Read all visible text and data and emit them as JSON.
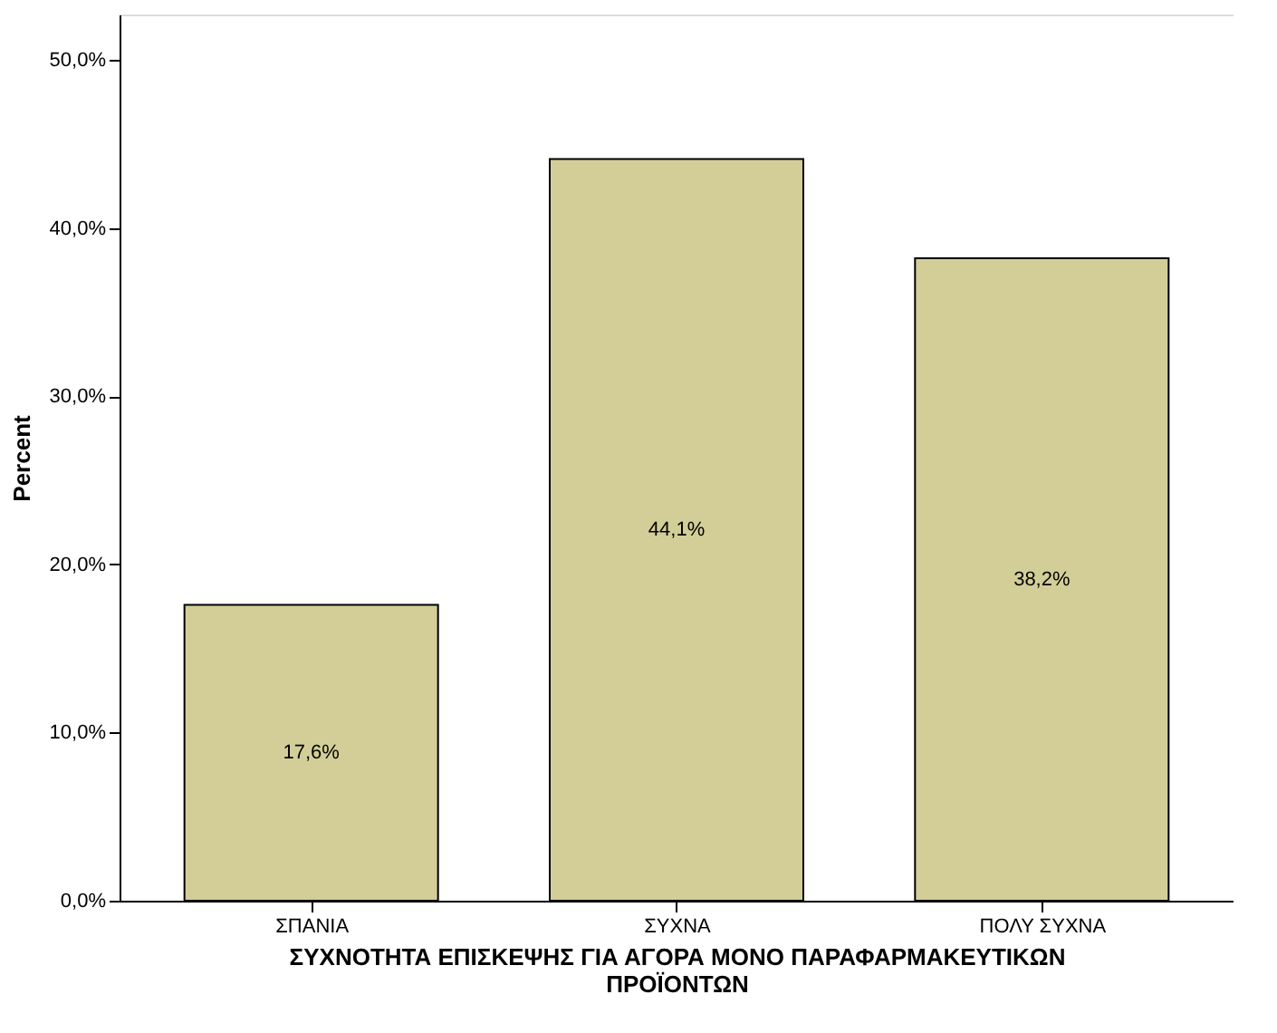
{
  "chart_data": {
    "type": "bar",
    "xlabel": "ΣΥΧΝΟΤΗΤΑ ΕΠΙΣΚΕΨΗΣ ΓΙΑ ΑΓΟΡΑ ΜΟΝΟ ΠΑΡΑΦΑΡΜΑΚΕΥΤΙΚΩΝ\nΠΡΟΪΟΝΤΩΝ",
    "ylabel": "Percent",
    "categories": [
      "ΣΠΑΝΙΑ",
      "ΣΥΧΝΑ",
      "ΠΟΛΥ ΣΥΧΝΑ"
    ],
    "values": [
      17.6,
      44.1,
      38.2
    ],
    "value_labels": [
      "17,6%",
      "44,1%",
      "38,2%"
    ],
    "color": "#d3ce98",
    "ylim": [
      0,
      52.7
    ],
    "yticks": [
      {
        "value": 0,
        "label": "0,0%"
      },
      {
        "value": 10,
        "label": "10,0%"
      },
      {
        "value": 20,
        "label": "20,0%"
      },
      {
        "value": 30,
        "label": "30,0%"
      },
      {
        "value": 40,
        "label": "40,0%"
      },
      {
        "value": 50,
        "label": "50,0%"
      }
    ],
    "grid": false
  }
}
